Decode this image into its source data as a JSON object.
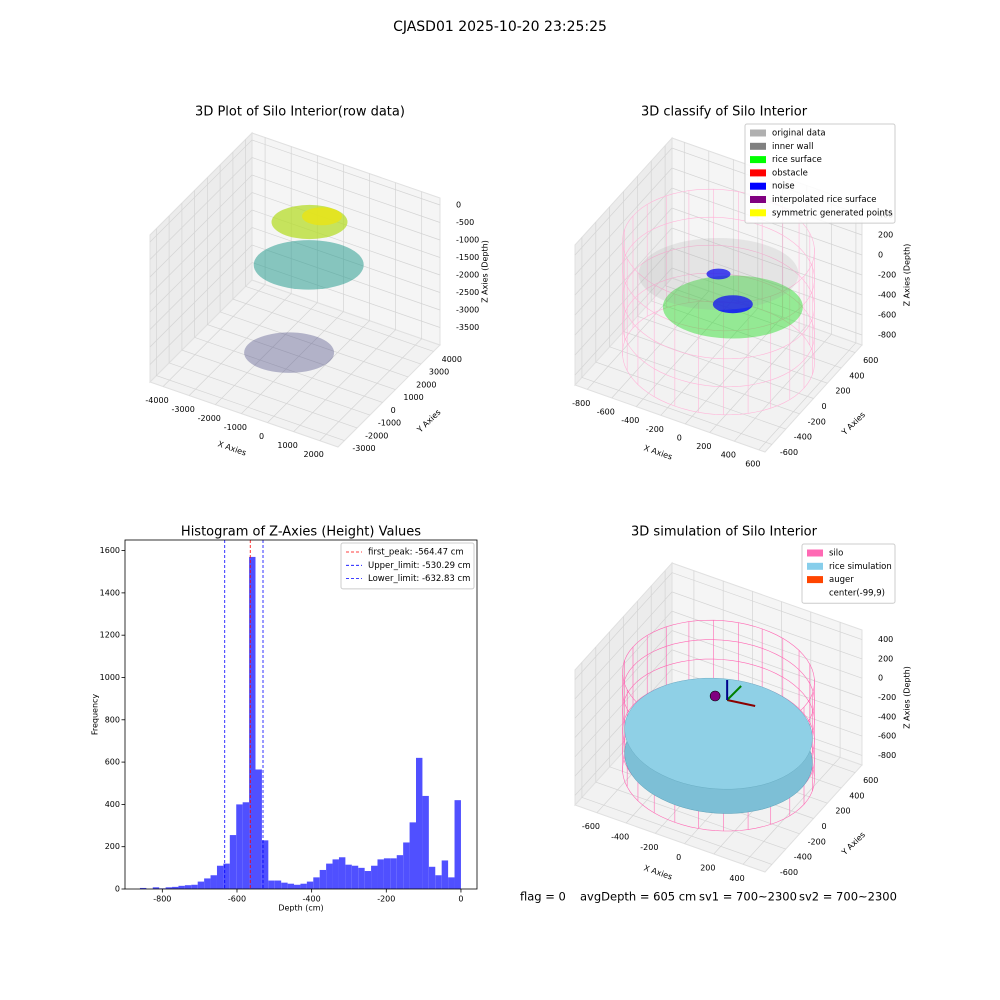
{
  "title": "CJASD01 2025-10-20 23:25:25",
  "footer": [
    "flag = 0",
    "avgDepth = 605 cm",
    "sv1 = 700~2300",
    "sv2 = 700~2300"
  ],
  "chart_data": [
    {
      "type": "scatter3d",
      "title": "3D Plot of Silo Interior(row data)",
      "xlabel": "X Axies",
      "ylabel": "Y Axies",
      "zlabel": "Z Axies (Depth)",
      "xlim": [
        -4500,
        2700
      ],
      "xticks": [
        -4000,
        -3000,
        -2000,
        -1000,
        0,
        1000,
        2000
      ],
      "ylim": [
        -3500,
        4500
      ],
      "yticks": [
        -3000,
        -2000,
        -1000,
        0,
        1000,
        2000,
        3000,
        4000
      ],
      "zlim": [
        -4000,
        200
      ],
      "zticks": [
        -3500,
        -3000,
        -2500,
        -2000,
        -1500,
        -1000,
        -500,
        0
      ],
      "grid": true
    },
    {
      "type": "scatter3d",
      "title": "3D classify of Silo Interior",
      "xlabel": "X Axies",
      "ylabel": "Y Axies",
      "zlabel": "Z Axies (Depth)",
      "xlim": [
        -900,
        650
      ],
      "xticks": [
        -800,
        -600,
        -400,
        -200,
        0,
        200,
        400,
        600
      ],
      "ylim": [
        -700,
        700
      ],
      "yticks": [
        -600,
        -400,
        -200,
        0,
        200,
        400,
        600
      ],
      "zlim": [
        -900,
        500
      ],
      "zticks": [
        -800,
        -600,
        -400,
        -200,
        0,
        200,
        400
      ],
      "grid": true,
      "legend_loc": "upper right",
      "legend": [
        {
          "name": "original data",
          "color": "#b0b0b0"
        },
        {
          "name": "inner wall",
          "color": "#808080"
        },
        {
          "name": "rice surface",
          "color": "#00ff00"
        },
        {
          "name": "obstacle",
          "color": "#ff0000"
        },
        {
          "name": "noise",
          "color": "#0000ff"
        },
        {
          "name": "interpolated rice surface",
          "color": "#800080"
        },
        {
          "name": "symmetric generated points",
          "color": "#ffff00"
        }
      ]
    },
    {
      "type": "histogram",
      "title": "Histogram of Z-Axies (Height) Values",
      "xlabel": "Depth (cm)",
      "ylabel": "Frequency",
      "color": "#5050ff",
      "xlim": [
        -900,
        43
      ],
      "xticks": [
        -800,
        -600,
        -400,
        -200,
        0
      ],
      "ylim": [
        0,
        1650
      ],
      "yticks": [
        0,
        200,
        400,
        600,
        800,
        1000,
        1200,
        1400,
        1600
      ],
      "bins": [
        -860,
        -842.8,
        -825.6,
        -808.4,
        -791.2,
        -774,
        -756.8,
        -739.6,
        -722.4,
        -705.2,
        -688,
        -670.8,
        -653.6,
        -636.4,
        -619.2,
        -602,
        -584.8,
        -567.6,
        -550.4,
        -533.2,
        -516,
        -498.8,
        -481.6,
        -464.4,
        -447.2,
        -430,
        -412.8,
        -395.6,
        -378.4,
        -361.2,
        -344,
        -326.8,
        -309.6,
        -292.4,
        -275.2,
        -258,
        -240.8,
        -223.6,
        -206.4,
        -189.2,
        -172,
        -154.8,
        -137.6,
        -120.4,
        -103.2,
        -86,
        -68.8,
        -51.6,
        -34.4,
        -17.2,
        0
      ],
      "values": [
        5,
        0,
        8,
        3,
        8,
        10,
        15,
        18,
        20,
        35,
        50,
        65,
        110,
        120,
        255,
        400,
        410,
        1570,
        565,
        230,
        40,
        40,
        30,
        25,
        20,
        25,
        35,
        55,
        90,
        120,
        140,
        150,
        115,
        110,
        100,
        85,
        110,
        140,
        145,
        145,
        160,
        220,
        315,
        620,
        440,
        105,
        65,
        135,
        55,
        420
      ],
      "legend_loc": "upper right",
      "lines": [
        {
          "label": "first_peak: -564.47 cm",
          "value": -564.47,
          "color": "#ff0000"
        },
        {
          "label": "Upper_limit: -530.29 cm",
          "value": -530.29,
          "color": "#0000ff"
        },
        {
          "label": "Lower_limit: -632.83 cm",
          "value": -632.83,
          "color": "#0000ff"
        }
      ]
    },
    {
      "type": "surface3d",
      "title": "3D simulation of Silo Interior",
      "xlabel": "X Axies",
      "ylabel": "Y Axies",
      "zlabel": "Z Axies (Depth)",
      "xlim": [
        -750,
        550
      ],
      "xticks": [
        -600,
        -400,
        -200,
        0,
        200,
        400
      ],
      "ylim": [
        -700,
        700
      ],
      "yticks": [
        -600,
        -400,
        -200,
        0,
        200,
        400,
        600
      ],
      "zlim": [
        -900,
        500
      ],
      "zticks": [
        -800,
        -600,
        -400,
        -200,
        0,
        200,
        400
      ],
      "grid": true,
      "legend_loc": "upper right",
      "legend": [
        {
          "name": "silo",
          "color": "#ff69b4"
        },
        {
          "name": "rice simulation",
          "color": "#87ceeb"
        },
        {
          "name": "auger",
          "color": "#ff4500"
        },
        {
          "name": "center(-99,9)",
          "color": "#ffffff"
        }
      ]
    }
  ]
}
